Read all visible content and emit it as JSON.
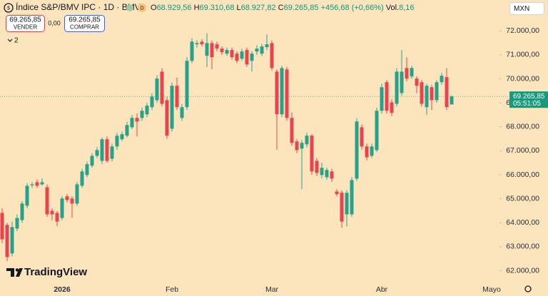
{
  "header": {
    "title": "Índice S&P/BMV IPC · 1D · BMV",
    "badge": "D",
    "ohlc": [
      {
        "key": "O",
        "text": "68.929,56"
      },
      {
        "key": "H",
        "text": "69.310,68"
      },
      {
        "key": "L",
        "text": "68.927,82"
      },
      {
        "key": "C",
        "text": "69.265,85"
      }
    ],
    "change": "+456,68 (+0,66%)",
    "volume_key": "Vol.",
    "volume": "8,16"
  },
  "currency": "MXN",
  "trade": {
    "sell_price": "69.265,85",
    "sell_label": "VENDER",
    "spread": "0,00",
    "buy_price": "69.265,85",
    "buy_label": "COMPRAR"
  },
  "indicators_count": "2",
  "brand": "TradingView",
  "chart_data": {
    "type": "candlestick",
    "up_color": "#26a28a",
    "down_color": "#e8444f",
    "categories": [
      null,
      null,
      null,
      null,
      null,
      null,
      null,
      null,
      null,
      null,
      null,
      null,
      "2026",
      null,
      null,
      null,
      null,
      null,
      null,
      null,
      null,
      null,
      null,
      null,
      null,
      null,
      null,
      null,
      null,
      null,
      null,
      null,
      null,
      null,
      "Feb",
      null,
      null,
      null,
      null,
      null,
      null,
      null,
      null,
      null,
      null,
      null,
      null,
      null,
      null,
      null,
      null,
      null,
      null,
      null,
      "Mar",
      null,
      null,
      null,
      null,
      null,
      null,
      null,
      null,
      null,
      null,
      null,
      null,
      null,
      null,
      null,
      null,
      null,
      null,
      null,
      null,
      null,
      "Abr",
      null,
      null,
      null,
      null,
      null,
      null,
      null,
      null,
      null,
      null,
      null,
      null,
      null,
      null,
      null,
      null,
      null,
      null,
      null,
      null,
      null,
      "Mayo"
    ],
    "open": [
      64410,
      63910,
      62720,
      63760,
      64110,
      64710,
      65560,
      65690,
      65600,
      65480,
      64500,
      64410,
      64200,
      65100,
      65010,
      64800,
      65540,
      65990,
      66380,
      66790,
      66580,
      67480,
      66670,
      67180,
      67480,
      67630,
      67980,
      68370,
      68370,
      68520,
      68820,
      69110,
      70300,
      69110,
      67920,
      69710,
      68370,
      68820,
      70750,
      71440,
      71550,
      70960,
      71490,
      71440,
      71260,
      71050,
      71200,
      71050,
      70840,
      71200,
      70750,
      71140,
      71050,
      71320,
      71490,
      70300,
      68520,
      70390,
      68370,
      67390,
      67090,
      67270,
      67630,
      66580,
      65990,
      65900,
      66140,
      65300,
      65250,
      64350,
      64350,
      65840,
      67980,
      67180,
      66790,
      67030,
      68670,
      69860,
      69020,
      68960,
      69410,
      70450,
      70100,
      70010,
      69860,
      68820,
      69650,
      69110,
      69860,
      70070,
      68929.56,
      null,
      null,
      null,
      null,
      null,
      null,
      null,
      null
    ],
    "high": [
      64600,
      64000,
      64050,
      64350,
      64900,
      65650,
      65700,
      65800,
      65850,
      65600,
      64600,
      64500,
      65100,
      65200,
      65100,
      65700,
      66250,
      66550,
      66900,
      67150,
      67550,
      67600,
      67300,
      67750,
      67800,
      68200,
      68500,
      68550,
      68800,
      69000,
      69400,
      70150,
      70450,
      69250,
      69850,
      70050,
      68950,
      70900,
      71700,
      71600,
      71650,
      71900,
      71600,
      71550,
      71350,
      71300,
      71300,
      71150,
      71250,
      71300,
      71150,
      71400,
      71450,
      71850,
      71600,
      70400,
      70550,
      70500,
      68600,
      67500,
      67450,
      67750,
      67700,
      66700,
      66500,
      66300,
      66250,
      65400,
      65350,
      65350,
      65900,
      68350,
      68100,
      67300,
      67300,
      68800,
      69800,
      69950,
      69150,
      70450,
      71200,
      70900,
      70550,
      70100,
      69950,
      69800,
      69750,
      69950,
      70250,
      70450,
      69310.68,
      null,
      null,
      null,
      null,
      null,
      null,
      null,
      null
    ],
    "low": [
      63150,
      62400,
      62600,
      63650,
      64000,
      64600,
      65450,
      65450,
      65550,
      64250,
      64100,
      63850,
      64100,
      64850,
      64200,
      64700,
      65450,
      65900,
      66300,
      66700,
      66450,
      66500,
      66550,
      67050,
      67400,
      67550,
      67900,
      67600,
      68250,
      68400,
      68700,
      69000,
      68850,
      67500,
      67800,
      68700,
      68250,
      68700,
      70650,
      71300,
      71350,
      70500,
      70400,
      71150,
      71000,
      70950,
      70800,
      70650,
      70750,
      70500,
      70300,
      71000,
      70950,
      71200,
      70350,
      67050,
      68400,
      68250,
      67200,
      66900,
      65400,
      67150,
      66000,
      65950,
      65850,
      65800,
      65700,
      65100,
      63800,
      63850,
      64250,
      65750,
      67050,
      66600,
      66700,
      66950,
      68550,
      68550,
      68450,
      68850,
      69300,
      69900,
      70000,
      69400,
      68850,
      68500,
      68700,
      69000,
      69750,
      68700,
      68927.82,
      null,
      null,
      null,
      null,
      null,
      null,
      null,
      null
    ],
    "close": [
      63310,
      62570,
      63820,
      64200,
      64800,
      65540,
      65600,
      65540,
      65690,
      64350,
      64350,
      64050,
      65010,
      64950,
      64800,
      65600,
      66140,
      66440,
      66790,
      67030,
      67480,
      66580,
      67180,
      67630,
      67690,
      68070,
      68370,
      68220,
      68670,
      68880,
      69260,
      70010,
      68960,
      67630,
      69710,
      68820,
      68820,
      70750,
      71550,
      71490,
      71440,
      71490,
      70900,
      71260,
      71110,
      71200,
      70900,
      70750,
      71140,
      70600,
      71050,
      71260,
      71350,
      71440,
      70450,
      68520,
      70450,
      68370,
      67330,
      67030,
      67330,
      67630,
      66140,
      66080,
      66290,
      66200,
      65840,
      65190,
      64050,
      65250,
      65780,
      68220,
      67180,
      66730,
      67180,
      68670,
      69650,
      68670,
      68580,
      70300,
      70300,
      70010,
      70450,
      69710,
      68960,
      69710,
      69110,
      69860,
      70130,
      68820,
      69265.85,
      null,
      null,
      null,
      null,
      null,
      null,
      null,
      null
    ],
    "ylim": [
      61600,
      72900
    ],
    "yticks": [
      {
        "value": 62000,
        "label": "62.000,00"
      },
      {
        "value": 63000,
        "label": "63.000,00"
      },
      {
        "value": 64000,
        "label": "64.000,00"
      },
      {
        "value": 65000,
        "label": "65.000,00"
      },
      {
        "value": 66000,
        "label": "66.000,00"
      },
      {
        "value": 67000,
        "label": "67.000,00"
      },
      {
        "value": 68000,
        "label": "68.000,00"
      },
      {
        "value": 69000,
        "label": "69.000,00"
      },
      {
        "value": 70000,
        "label": "70.000,00"
      },
      {
        "value": 71000,
        "label": "71.000,00"
      },
      {
        "value": 72000,
        "label": "72.000,00"
      }
    ],
    "last": {
      "value": 69265.85,
      "label": "69.265,85",
      "countdown": "05:51:05"
    }
  }
}
